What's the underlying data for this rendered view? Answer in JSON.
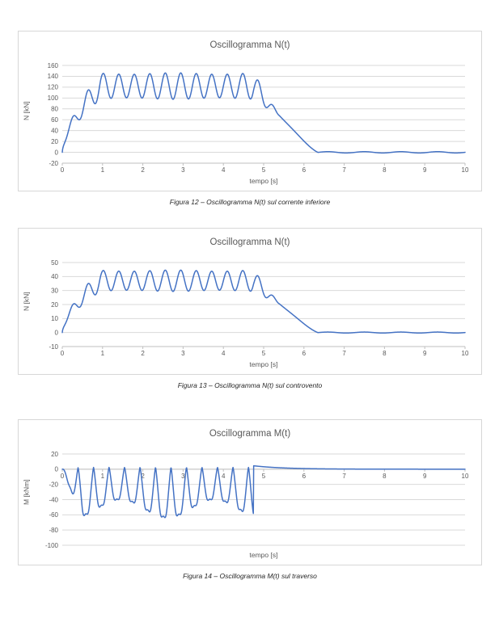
{
  "document": {
    "background": "#ffffff"
  },
  "chart_data": [
    {
      "type": "line",
      "title": "Oscillogramma N(t)",
      "xlabel": "tempo [s]",
      "ylabel": "N [kN]",
      "caption": "Figura 12 – Oscillogramma N(t) sul corrente inferiore",
      "xlim": [
        0,
        10
      ],
      "ylim": [
        -20,
        160
      ],
      "xtick_step": 1,
      "ytick_step": 20,
      "x_labels_at": "bottom",
      "grid": "horizontal",
      "legend": "none",
      "grid_color": "#d9d9d9",
      "axis_color": "#bfbfbf",
      "text_color": "#595959",
      "series": [
        {
          "name": "N(t) corrente inferiore",
          "color": "#4472c4",
          "signal": {
            "units": "kN",
            "rise_interval_s": [
              0,
              0.95
            ],
            "steady_interval_s": [
              0.95,
              4.75
            ],
            "steady_mean": 122,
            "steady_peak": 145,
            "steady_trough": 99,
            "oscillation_freq_hz": 2.6,
            "decay_interval_s": [
              4.75,
              6.35
            ],
            "final_value": 0
          },
          "synth": {
            "kind": "ramp_sine",
            "freq": 2.6,
            "phase": -2.51,
            "rise_pow": 0.62,
            "ramp_end": 0.95,
            "plateau_end": 4.75,
            "decay_end": 6.35,
            "mean": 122,
            "amp": 23,
            "amp_var": 0.06,
            "amp_var_freq": 0.45,
            "residual": 1.2,
            "residual_freq": 1.1
          }
        }
      ]
    },
    {
      "type": "line",
      "title": "Oscillogramma N(t)",
      "xlabel": "tempo [s]",
      "ylabel": "N [kN]",
      "caption": "Figura 13 – Oscillogramma N(t) sul controvento",
      "xlim": [
        0,
        10
      ],
      "ylim": [
        -10,
        50
      ],
      "xtick_step": 1,
      "ytick_step": 10,
      "x_labels_at": "bottom",
      "grid": "horizontal",
      "legend": "none",
      "grid_color": "#d9d9d9",
      "axis_color": "#bfbfbf",
      "text_color": "#595959",
      "series": [
        {
          "name": "N(t) controvento",
          "color": "#4472c4",
          "signal": {
            "units": "kN",
            "rise_interval_s": [
              0,
              0.95
            ],
            "steady_interval_s": [
              0.95,
              4.75
            ],
            "steady_mean": 37,
            "steady_peak": 44,
            "steady_trough": 30,
            "oscillation_freq_hz": 2.6,
            "decay_interval_s": [
              4.75,
              6.35
            ],
            "final_value": 0
          },
          "synth": {
            "kind": "ramp_sine",
            "freq": 2.6,
            "phase": -2.51,
            "rise_pow": 0.62,
            "ramp_end": 0.95,
            "plateau_end": 4.75,
            "decay_end": 6.35,
            "mean": 37,
            "amp": 7.2,
            "amp_var": 0.06,
            "amp_var_freq": 0.45,
            "residual": 0.35,
            "residual_freq": 1.1
          }
        }
      ]
    },
    {
      "type": "line",
      "title": "Oscillogramma M(t)",
      "xlabel": "tempo [s]",
      "ylabel": "M [kNm]",
      "caption": "Figura 14 – Oscillogramma M(t) sul traverso",
      "xlim": [
        0,
        10
      ],
      "ylim": [
        -100,
        20
      ],
      "xtick_step": 1,
      "ytick_step": 20,
      "x_labels_at": "zero",
      "grid": "horizontal",
      "legend": "none",
      "grid_color": "#d9d9d9",
      "axis_color": "#bfbfbf",
      "text_color": "#595959",
      "series": [
        {
          "name": "M(t) traverso",
          "color": "#4472c4",
          "signal": {
            "units": "kNm",
            "spike_direction": "negative",
            "spike_depth_range": [
              -85,
              -50
            ],
            "baseline_between_spikes": 2.5,
            "active_interval_s": [
              0,
              4.75
            ],
            "oscillation_freq_hz": 2.6,
            "post_peak_value": 4.5,
            "final_value": 0
          },
          "synth": {
            "kind": "ramp_spike",
            "freq": 2.6,
            "phase_off": -0.02,
            "ramp_end": 0.5,
            "active_end": 4.75,
            "base": 2.5,
            "depth": 68,
            "depth_var": 0.22,
            "depth_var_freq": 0.43,
            "depth_var_phase": 0.8,
            "notch": 0.22,
            "post_peak": 4.5,
            "post_tau": 0.75
          }
        }
      ]
    }
  ]
}
